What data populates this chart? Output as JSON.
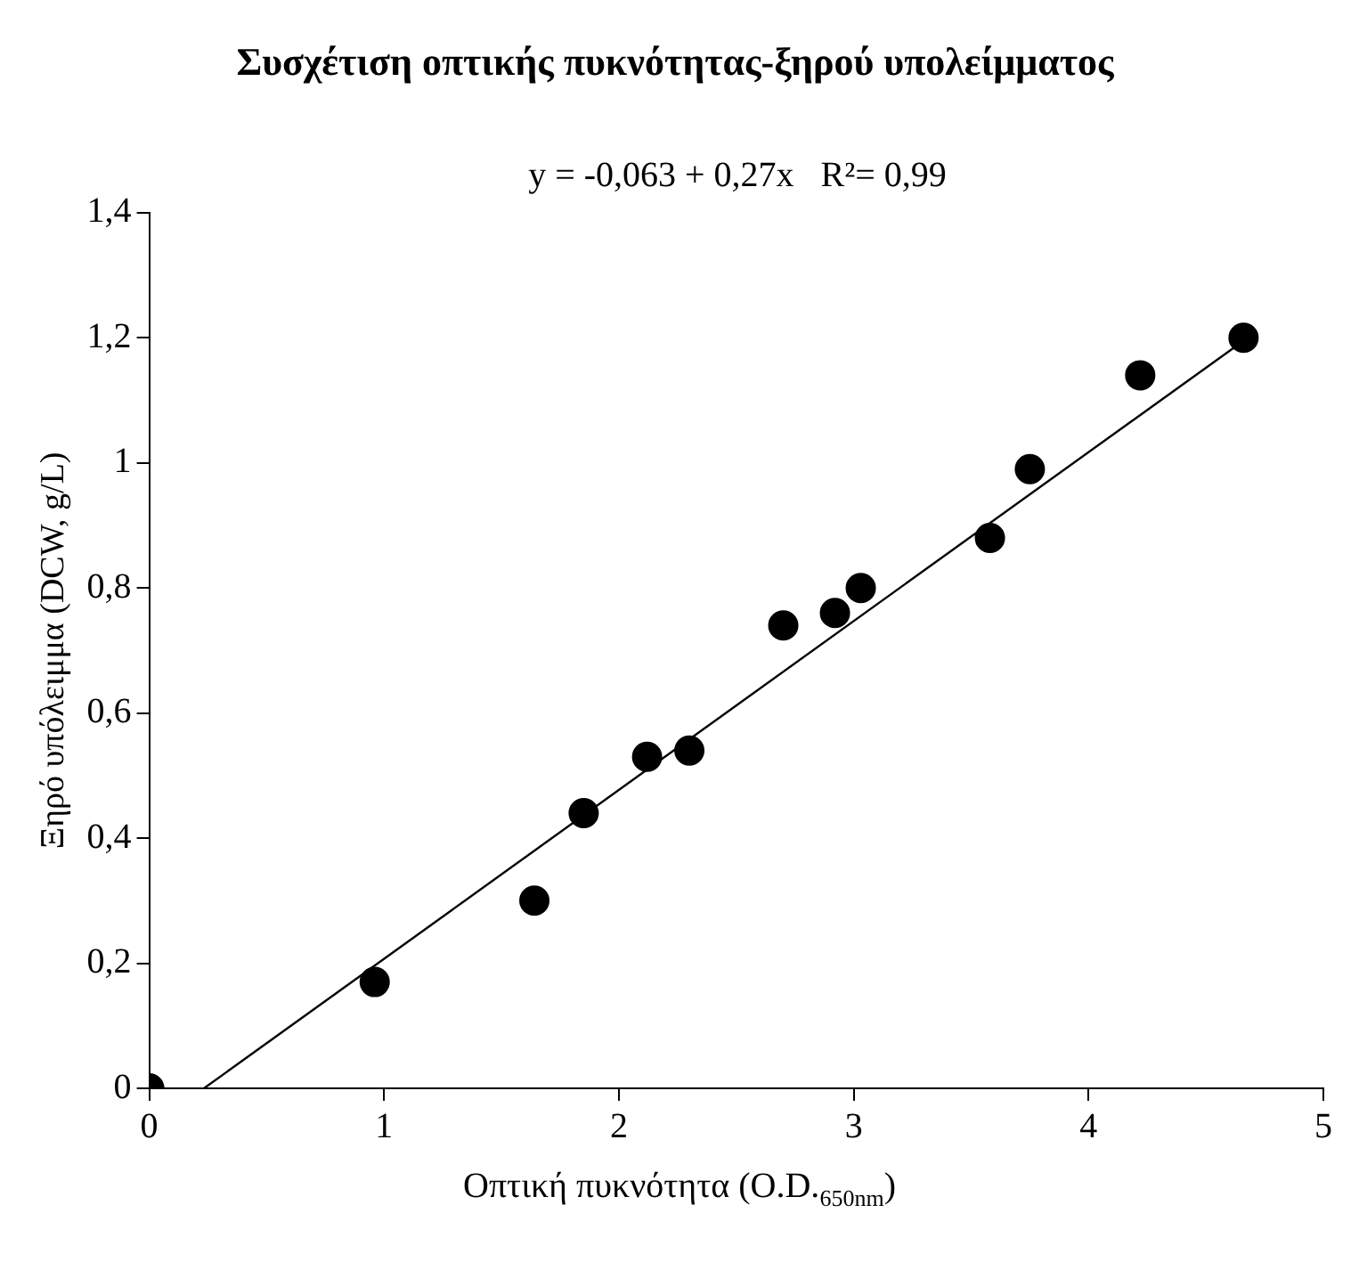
{
  "chart_data": {
    "type": "scatter",
    "title": "Συσχέτιση οπτικής πυκνότητας-ξηρού υπολείμματος",
    "xlabel": "Οπτική πυκνότητα (O.D.$_{650nm}$)",
    "ylabel": "Ξηρό υπόλειμμα (DCW, g/L)",
    "series": [
      {
        "color": "#000000",
        "x": [
          0,
          0.96,
          1.64,
          1.85,
          2.12,
          2.3,
          2.7,
          2.92,
          3.03,
          3.58,
          3.75,
          4.22,
          4.66
        ],
        "values": [
          0,
          0.17,
          0.3,
          0.44,
          0.53,
          0.54,
          0.74,
          0.76,
          0.8,
          0.88,
          0.99,
          1.14,
          1.2
        ]
      },
      {
        "type": "line",
        "name": "y = -0,063 + 0,27x   R²= 0,99",
        "color": "#000000",
        "x": [
          0.233,
          4.67
        ],
        "values": [
          0,
          1.198
        ],
        "marker": "none"
      }
    ],
    "marker": "circle",
    "xlim": [
      0,
      5
    ],
    "xticks": [
      0,
      1,
      2,
      3,
      4,
      5
    ],
    "ylim": [
      0,
      1.4
    ],
    "yticks": [
      0,
      {
        "value": 0.2,
        "label": "0,2"
      },
      {
        "value": 0.4,
        "label": "0,4"
      },
      {
        "value": 0.6,
        "label": "0,6"
      },
      {
        "value": 0.8,
        "label": "0,8"
      },
      1,
      {
        "value": 1.2,
        "label": "1,2"
      },
      {
        "value": 1.4,
        "label": "1,4"
      }
    ],
    "grid": false,
    "legend": "top"
  }
}
